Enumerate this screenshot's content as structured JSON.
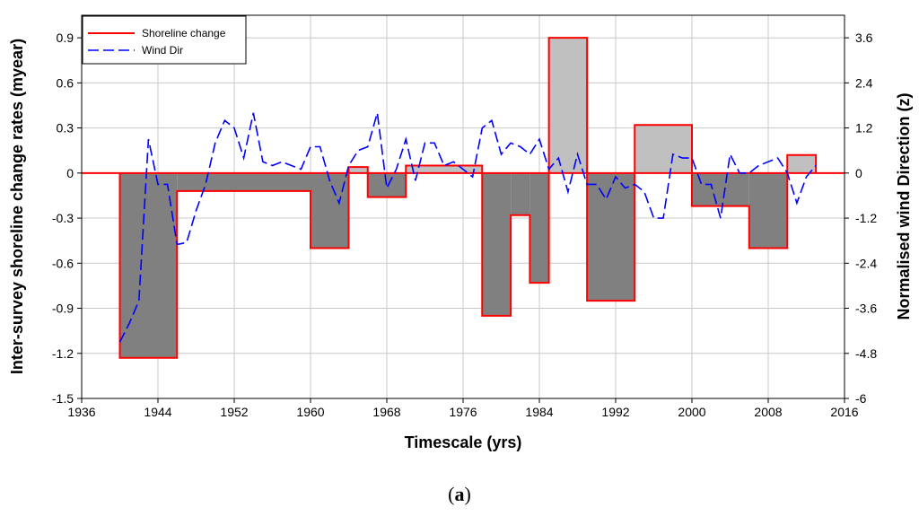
{
  "chart_data": {
    "type": "bar",
    "xlabel": "Timescale (yrs)",
    "ylabel": "Inter-survey shoreline change rates (myear)",
    "y2label": "Normalised wind Direction (z)",
    "xlim": [
      1936,
      2016
    ],
    "ylim": [
      -1.5,
      1.05
    ],
    "y2lim": [
      -6,
      4.2
    ],
    "x_ticks": [
      1936,
      1944,
      1952,
      1960,
      1968,
      1976,
      1984,
      1992,
      2000,
      2008,
      2016
    ],
    "y_ticks": [
      -1.5,
      -1.2,
      -0.9,
      -0.6,
      -0.3,
      0,
      0.3,
      0.6,
      0.9
    ],
    "y_tick_labels": [
      "-1.5",
      "-1.2",
      "-0.9",
      "-0.6",
      "-0.3",
      "0",
      "0.3",
      "0.6",
      "0.9"
    ],
    "y2_ticks": [
      -6,
      -4.8,
      -3.6,
      -2.4,
      -1.2,
      0,
      1.2,
      2.4,
      3.6
    ],
    "y2_tick_labels": [
      "-6",
      "-4.8",
      "-3.6",
      "-2.4",
      "-1.2",
      "0",
      "1.2",
      "2.4",
      "3.6"
    ],
    "grid": true,
    "legend_position": "top-left",
    "colors": {
      "negative_fill": "#808080",
      "positive_fill": "#c0c0c0",
      "shoreline": "#ff0000",
      "wind": "#0000ff",
      "grid": "#c8c8c8"
    },
    "series": [
      {
        "name": "Shoreline change",
        "style": "step-area",
        "axis": "left",
        "segments": [
          {
            "x0": 1940,
            "x1": 1946,
            "value": -1.23
          },
          {
            "x0": 1946,
            "x1": 1960,
            "value": -0.12
          },
          {
            "x0": 1960,
            "x1": 1964,
            "value": -0.5
          },
          {
            "x0": 1964,
            "x1": 1966,
            "value": 0.04
          },
          {
            "x0": 1966,
            "x1": 1970,
            "value": -0.16
          },
          {
            "x0": 1970,
            "x1": 1978,
            "value": 0.05
          },
          {
            "x0": 1978,
            "x1": 1981,
            "value": -0.95
          },
          {
            "x0": 1981,
            "x1": 1983,
            "value": -0.28
          },
          {
            "x0": 1983,
            "x1": 1985,
            "value": -0.73
          },
          {
            "x0": 1985,
            "x1": 1989,
            "value": 0.9
          },
          {
            "x0": 1989,
            "x1": 1994,
            "value": -0.85
          },
          {
            "x0": 1994,
            "x1": 2000,
            "value": 0.32
          },
          {
            "x0": 2000,
            "x1": 2006,
            "value": -0.22
          },
          {
            "x0": 2006,
            "x1": 2010,
            "value": -0.5
          },
          {
            "x0": 2010,
            "x1": 2013,
            "value": 0.12
          }
        ]
      },
      {
        "name": "Wind Dir",
        "style": "dashed-line",
        "axis": "right",
        "x": [
          1940,
          1941,
          1942,
          1943,
          1944,
          1945,
          1946,
          1947,
          1948,
          1949,
          1950,
          1951,
          1952,
          1953,
          1954,
          1955,
          1956,
          1957,
          1958,
          1959,
          1960,
          1961,
          1962,
          1963,
          1964,
          1965,
          1966,
          1967,
          1968,
          1969,
          1970,
          1971,
          1972,
          1973,
          1974,
          1975,
          1976,
          1977,
          1978,
          1979,
          1980,
          1981,
          1982,
          1983,
          1984,
          1985,
          1986,
          1987,
          1988,
          1989,
          1990,
          1991,
          1992,
          1993,
          1994,
          1995,
          1996,
          1997,
          1998,
          1999,
          2000,
          2001,
          2002,
          2003,
          2004,
          2005,
          2006,
          2007,
          2008,
          2009,
          2010,
          2011,
          2012,
          2013
        ],
        "values": [
          -4.5,
          -4.0,
          -3.4,
          0.9,
          -0.3,
          -0.3,
          -1.9,
          -1.85,
          -1.0,
          -0.3,
          0.8,
          1.4,
          1.2,
          0.4,
          1.6,
          0.3,
          0.2,
          0.3,
          0.2,
          0.1,
          0.7,
          0.7,
          -0.2,
          -0.8,
          0.2,
          0.6,
          0.7,
          1.6,
          -0.4,
          0.1,
          0.9,
          -0.2,
          0.8,
          0.8,
          0.2,
          0.3,
          0.1,
          -0.1,
          1.2,
          1.4,
          0.5,
          0.8,
          0.7,
          0.5,
          0.9,
          0.1,
          0.4,
          -0.5,
          0.5,
          -0.3,
          -0.3,
          -0.7,
          -0.1,
          -0.4,
          -0.3,
          -0.5,
          -1.2,
          -1.2,
          0.5,
          0.4,
          0.4,
          -0.3,
          -0.3,
          -1.2,
          0.5,
          0.0,
          0.0,
          0.2,
          0.3,
          0.4,
          0.0,
          -0.8,
          -0.1,
          0.2
        ]
      }
    ]
  },
  "caption": "(a)"
}
